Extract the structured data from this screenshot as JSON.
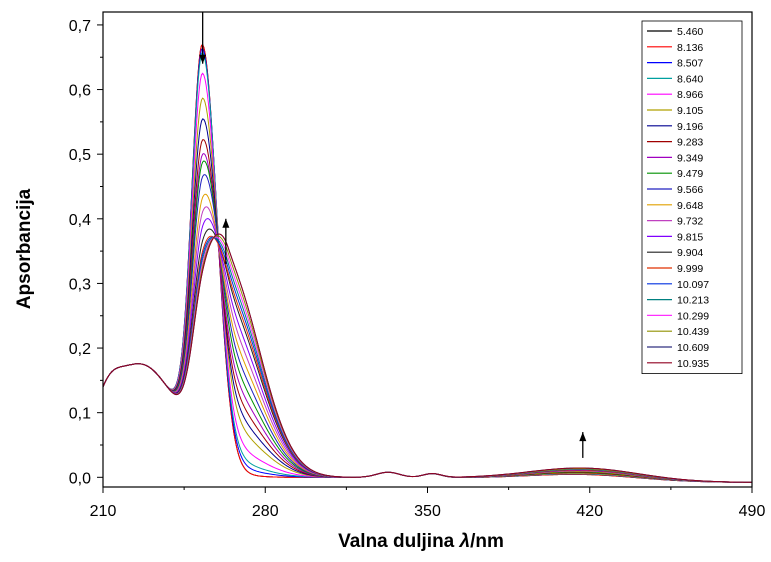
{
  "chart_data": {
    "type": "line",
    "title": "",
    "xlabel_main": "Valna duljina ",
    "xlabel_symbol": "λ",
    "xlabel_unit": "/nm",
    "ylabel": "Apsorbancija",
    "xlim": [
      210,
      490
    ],
    "ylim": [
      -0.015,
      0.72
    ],
    "x_ticks": [
      210,
      280,
      350,
      420,
      490
    ],
    "x_tick_labels": [
      "210",
      "280",
      "350",
      "420",
      "490"
    ],
    "y_ticks": [
      0.0,
      0.1,
      0.2,
      0.3,
      0.4,
      0.5,
      0.6,
      0.7
    ],
    "y_tick_labels": [
      "0,0",
      "0,1",
      "0,2",
      "0,3",
      "0,4",
      "0,5",
      "0,6",
      "0,7"
    ],
    "grid": false,
    "legend_position": "top-right",
    "arrows": [
      {
        "direction": "down",
        "x": 253,
        "from": 0.72,
        "to": 0.64
      },
      {
        "direction": "up",
        "x": 263,
        "from": 0.33,
        "to": 0.4
      },
      {
        "direction": "up",
        "x": 417,
        "from": 0.03,
        "to": 0.07
      }
    ],
    "series": [
      {
        "name": "5.460",
        "color": "#000000",
        "peak1": 0.62,
        "peak2": 0.0,
        "ab": 0.01
      },
      {
        "name": "8.136",
        "color": "#ff0000",
        "peak1": 0.62,
        "peak2": 0.0,
        "ab": 0.01
      },
      {
        "name": "8.507",
        "color": "#0000ff",
        "peak1": 0.61,
        "peak2": 0.01,
        "ab": 0.011
      },
      {
        "name": "8.640",
        "color": "#00a0a0",
        "peak1": 0.6,
        "peak2": 0.02,
        "ab": 0.011
      },
      {
        "name": "8.966",
        "color": "#ff00ff",
        "peak1": 0.56,
        "peak2": 0.04,
        "ab": 0.012
      },
      {
        "name": "9.105",
        "color": "#b0a000",
        "peak1": 0.51,
        "peak2": 0.07,
        "ab": 0.012
      },
      {
        "name": "9.196",
        "color": "#000090",
        "peak1": 0.47,
        "peak2": 0.09,
        "ab": 0.013
      },
      {
        "name": "9.283",
        "color": "#a00000",
        "peak1": 0.43,
        "peak2": 0.11,
        "ab": 0.013
      },
      {
        "name": "9.349",
        "color": "#a000c0",
        "peak1": 0.4,
        "peak2": 0.13,
        "ab": 0.014
      },
      {
        "name": "9.479",
        "color": "#009000",
        "peak1": 0.38,
        "peak2": 0.15,
        "ab": 0.014
      },
      {
        "name": "9.566",
        "color": "#2020c0",
        "peak1": 0.35,
        "peak2": 0.17,
        "ab": 0.015
      },
      {
        "name": "9.648",
        "color": "#e0a000",
        "peak1": 0.31,
        "peak2": 0.19,
        "ab": 0.015
      },
      {
        "name": "9.732",
        "color": "#c040c0",
        "peak1": 0.28,
        "peak2": 0.21,
        "ab": 0.016
      },
      {
        "name": "9.815",
        "color": "#8000ff",
        "peak1": 0.25,
        "peak2": 0.23,
        "ab": 0.016
      },
      {
        "name": "9.904",
        "color": "#202020",
        "peak1": 0.22,
        "peak2": 0.25,
        "ab": 0.017
      },
      {
        "name": "9.999",
        "color": "#e03000",
        "peak1": 0.2,
        "peak2": 0.26,
        "ab": 0.017
      },
      {
        "name": "10.097",
        "color": "#0030e0",
        "peak1": 0.19,
        "peak2": 0.27,
        "ab": 0.018
      },
      {
        "name": "10.213",
        "color": "#008080",
        "peak1": 0.18,
        "peak2": 0.28,
        "ab": 0.018
      },
      {
        "name": "10.299",
        "color": "#ff30ff",
        "peak1": 0.17,
        "peak2": 0.29,
        "ab": 0.019
      },
      {
        "name": "10.439",
        "color": "#909000",
        "peak1": 0.16,
        "peak2": 0.3,
        "ab": 0.019
      },
      {
        "name": "10.609",
        "color": "#303080",
        "peak1": 0.15,
        "peak2": 0.31,
        "ab": 0.02
      },
      {
        "name": "10.935",
        "color": "#900020",
        "peak1": 0.15,
        "peak2": 0.31,
        "ab": 0.02
      }
    ]
  }
}
